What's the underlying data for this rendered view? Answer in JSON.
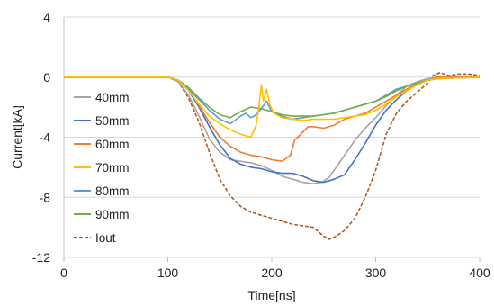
{
  "chart_data": {
    "type": "line",
    "title": "",
    "xlabel": "Time[ns]",
    "ylabel": "Current[kA]",
    "xlim": [
      0,
      400
    ],
    "ylim": [
      -12,
      4
    ],
    "xticks": [
      0,
      100,
      200,
      300,
      400
    ],
    "yticks": [
      4,
      0,
      -4,
      -8,
      -12
    ],
    "xtick_labels": [
      "0",
      "100",
      "200",
      "300",
      "400"
    ],
    "ytick_labels": [
      "4",
      "0",
      "-4",
      "-8",
      "-12"
    ],
    "grid": "horizontal",
    "legend_position": "left",
    "series": [
      {
        "name": "40mm",
        "color": "#a5a5a5",
        "dash": "solid",
        "points": [
          [
            0,
            0
          ],
          [
            100,
            0
          ],
          [
            110,
            -0.3
          ],
          [
            120,
            -1.2
          ],
          [
            130,
            -2.6
          ],
          [
            140,
            -4.1
          ],
          [
            150,
            -5.0
          ],
          [
            160,
            -5.5
          ],
          [
            170,
            -5.6
          ],
          [
            180,
            -5.7
          ],
          [
            190,
            -5.9
          ],
          [
            200,
            -6.2
          ],
          [
            210,
            -6.6
          ],
          [
            220,
            -6.8
          ],
          [
            230,
            -7.0
          ],
          [
            240,
            -7.1
          ],
          [
            248,
            -7.0
          ],
          [
            255,
            -6.7
          ],
          [
            262,
            -6.0
          ],
          [
            270,
            -5.2
          ],
          [
            280,
            -4.2
          ],
          [
            290,
            -3.4
          ],
          [
            300,
            -2.7
          ],
          [
            310,
            -1.9
          ],
          [
            320,
            -1.2
          ],
          [
            330,
            -0.6
          ],
          [
            340,
            -0.3
          ],
          [
            350,
            -0.1
          ],
          [
            360,
            0
          ],
          [
            400,
            0
          ]
        ]
      },
      {
        "name": "50mm",
        "color": "#4472c4",
        "dash": "solid",
        "points": [
          [
            0,
            0
          ],
          [
            100,
            0
          ],
          [
            110,
            -0.2
          ],
          [
            120,
            -0.9
          ],
          [
            130,
            -2.0
          ],
          [
            140,
            -3.3
          ],
          [
            150,
            -4.5
          ],
          [
            160,
            -5.4
          ],
          [
            170,
            -5.8
          ],
          [
            180,
            -6.0
          ],
          [
            190,
            -6.1
          ],
          [
            200,
            -6.3
          ],
          [
            210,
            -6.4
          ],
          [
            220,
            -6.4
          ],
          [
            230,
            -6.6
          ],
          [
            240,
            -6.9
          ],
          [
            250,
            -7.0
          ],
          [
            260,
            -6.8
          ],
          [
            270,
            -6.5
          ],
          [
            280,
            -5.5
          ],
          [
            290,
            -4.4
          ],
          [
            300,
            -3.2
          ],
          [
            310,
            -2.2
          ],
          [
            320,
            -1.5
          ],
          [
            330,
            -0.9
          ],
          [
            340,
            -0.5
          ],
          [
            350,
            -0.2
          ],
          [
            360,
            -0.1
          ],
          [
            400,
            0
          ]
        ]
      },
      {
        "name": "60mm",
        "color": "#ed7d31",
        "dash": "solid",
        "points": [
          [
            0,
            0
          ],
          [
            100,
            0
          ],
          [
            110,
            -0.2
          ],
          [
            120,
            -0.8
          ],
          [
            130,
            -1.9
          ],
          [
            140,
            -3.0
          ],
          [
            150,
            -4.0
          ],
          [
            160,
            -4.6
          ],
          [
            170,
            -5.0
          ],
          [
            180,
            -5.2
          ],
          [
            190,
            -5.3
          ],
          [
            200,
            -5.5
          ],
          [
            210,
            -5.6
          ],
          [
            218,
            -5.2
          ],
          [
            222,
            -4.2
          ],
          [
            228,
            -3.8
          ],
          [
            235,
            -3.3
          ],
          [
            240,
            -3.3
          ],
          [
            250,
            -3.4
          ],
          [
            260,
            -3.2
          ],
          [
            270,
            -2.8
          ],
          [
            280,
            -2.6
          ],
          [
            290,
            -2.4
          ],
          [
            300,
            -2.0
          ],
          [
            310,
            -1.6
          ],
          [
            320,
            -1.2
          ],
          [
            330,
            -0.8
          ],
          [
            340,
            -0.4
          ],
          [
            350,
            -0.2
          ],
          [
            360,
            0
          ],
          [
            400,
            0
          ]
        ]
      },
      {
        "name": "70mm",
        "color": "#ffc000",
        "dash": "solid",
        "points": [
          [
            0,
            0
          ],
          [
            100,
            0
          ],
          [
            110,
            -0.2
          ],
          [
            120,
            -0.9
          ],
          [
            130,
            -1.8
          ],
          [
            140,
            -2.6
          ],
          [
            150,
            -3.1
          ],
          [
            160,
            -3.5
          ],
          [
            170,
            -3.8
          ],
          [
            180,
            -4.0
          ],
          [
            185,
            -3.2
          ],
          [
            188,
            -1.8
          ],
          [
            190,
            -0.5
          ],
          [
            192,
            -1.6
          ],
          [
            195,
            -0.8
          ],
          [
            198,
            -1.8
          ],
          [
            202,
            -2.4
          ],
          [
            210,
            -2.7
          ],
          [
            220,
            -2.8
          ],
          [
            230,
            -2.9
          ],
          [
            240,
            -2.8
          ],
          [
            250,
            -2.8
          ],
          [
            260,
            -2.8
          ],
          [
            270,
            -2.7
          ],
          [
            280,
            -2.6
          ],
          [
            290,
            -2.5
          ],
          [
            300,
            -2.2
          ],
          [
            310,
            -1.8
          ],
          [
            320,
            -1.3
          ],
          [
            330,
            -0.9
          ],
          [
            340,
            -0.5
          ],
          [
            350,
            -0.2
          ],
          [
            360,
            -0.1
          ],
          [
            400,
            0
          ]
        ]
      },
      {
        "name": "80mm",
        "color": "#5b9bd5",
        "dash": "solid",
        "points": [
          [
            0,
            0
          ],
          [
            100,
            0
          ],
          [
            110,
            -0.2
          ],
          [
            120,
            -0.8
          ],
          [
            130,
            -1.5
          ],
          [
            140,
            -2.2
          ],
          [
            150,
            -2.8
          ],
          [
            160,
            -3.1
          ],
          [
            170,
            -2.6
          ],
          [
            175,
            -2.4
          ],
          [
            180,
            -2.7
          ],
          [
            185,
            -2.5
          ],
          [
            190,
            -2.1
          ],
          [
            195,
            -1.6
          ],
          [
            200,
            -2.3
          ],
          [
            210,
            -2.6
          ],
          [
            220,
            -2.8
          ],
          [
            230,
            -2.7
          ],
          [
            240,
            -2.6
          ],
          [
            250,
            -2.5
          ],
          [
            260,
            -2.4
          ],
          [
            270,
            -2.2
          ],
          [
            280,
            -2.0
          ],
          [
            290,
            -1.8
          ],
          [
            300,
            -1.6
          ],
          [
            310,
            -1.2
          ],
          [
            320,
            -0.8
          ],
          [
            330,
            -0.6
          ],
          [
            340,
            -0.4
          ],
          [
            350,
            -0.2
          ],
          [
            360,
            -0.1
          ],
          [
            400,
            0
          ]
        ]
      },
      {
        "name": "90mm",
        "color": "#70ad47",
        "dash": "solid",
        "points": [
          [
            0,
            0
          ],
          [
            100,
            0
          ],
          [
            110,
            -0.2
          ],
          [
            120,
            -0.7
          ],
          [
            130,
            -1.4
          ],
          [
            140,
            -2.0
          ],
          [
            150,
            -2.5
          ],
          [
            160,
            -2.7
          ],
          [
            170,
            -2.3
          ],
          [
            180,
            -2.0
          ],
          [
            190,
            -2.1
          ],
          [
            200,
            -2.3
          ],
          [
            210,
            -2.5
          ],
          [
            220,
            -2.6
          ],
          [
            230,
            -2.6
          ],
          [
            240,
            -2.6
          ],
          [
            250,
            -2.5
          ],
          [
            260,
            -2.4
          ],
          [
            270,
            -2.2
          ],
          [
            280,
            -2.0
          ],
          [
            290,
            -1.8
          ],
          [
            300,
            -1.6
          ],
          [
            310,
            -1.3
          ],
          [
            320,
            -0.9
          ],
          [
            330,
            -0.6
          ],
          [
            340,
            -0.4
          ],
          [
            350,
            -0.2
          ],
          [
            360,
            -0.1
          ],
          [
            400,
            0
          ]
        ]
      },
      {
        "name": "Iout",
        "color": "#b35a1f",
        "dash": "dashed",
        "points": [
          [
            0,
            0
          ],
          [
            100,
            0
          ],
          [
            110,
            -0.3
          ],
          [
            120,
            -1.4
          ],
          [
            130,
            -3.0
          ],
          [
            140,
            -5.0
          ],
          [
            150,
            -6.8
          ],
          [
            160,
            -7.9
          ],
          [
            170,
            -8.6
          ],
          [
            180,
            -9.0
          ],
          [
            190,
            -9.2
          ],
          [
            200,
            -9.4
          ],
          [
            210,
            -9.6
          ],
          [
            220,
            -9.8
          ],
          [
            230,
            -9.9
          ],
          [
            240,
            -10.0
          ],
          [
            250,
            -10.6
          ],
          [
            255,
            -10.8
          ],
          [
            262,
            -10.6
          ],
          [
            270,
            -10.2
          ],
          [
            280,
            -9.4
          ],
          [
            290,
            -8.0
          ],
          [
            300,
            -6.2
          ],
          [
            305,
            -5.0
          ],
          [
            310,
            -3.8
          ],
          [
            320,
            -2.4
          ],
          [
            330,
            -1.6
          ],
          [
            340,
            -1.0
          ],
          [
            350,
            -0.4
          ],
          [
            355,
            0.1
          ],
          [
            362,
            0.3
          ],
          [
            370,
            0.1
          ],
          [
            380,
            0.2
          ],
          [
            390,
            0.2
          ],
          [
            400,
            0.1
          ]
        ]
      }
    ]
  }
}
